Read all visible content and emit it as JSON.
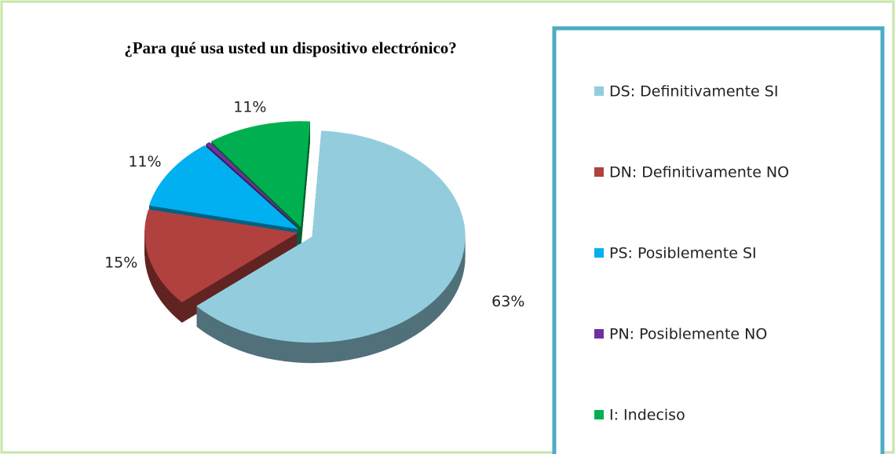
{
  "chart_data": {
    "type": "pie",
    "title": "¿Para qué usa usted un dispositivo electrónico?",
    "categories": [
      "DS: Definitivamente SI",
      "DN: Definitivamente NO",
      "PS: Posiblemente SI",
      "PN: Posiblemente NO",
      "I:  Indeciso"
    ],
    "values": [
      63,
      15,
      11,
      0.5,
      11
    ],
    "value_labels": [
      "63%",
      "15%",
      "11%",
      null,
      "11%"
    ],
    "colors": [
      "#93cddd",
      "#b0413e",
      "#00b0f0",
      "#7030a0",
      "#00b050"
    ],
    "legend": "right"
  }
}
